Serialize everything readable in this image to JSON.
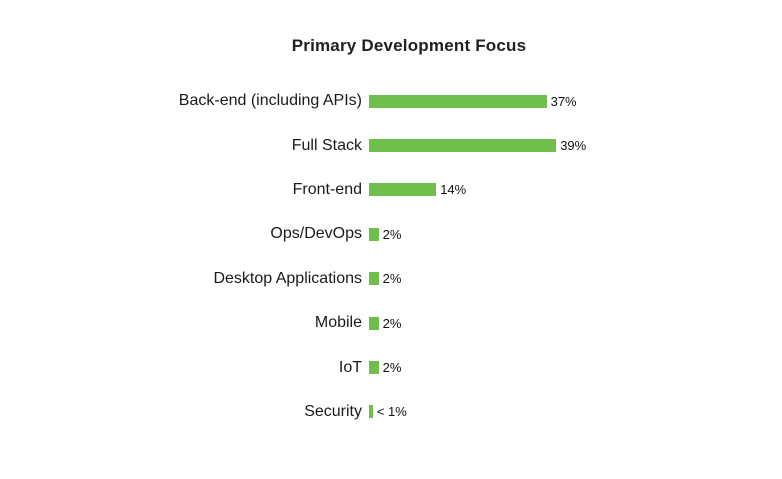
{
  "chart_data": {
    "type": "bar",
    "orientation": "horizontal",
    "title": "Primary Development Focus",
    "categories": [
      "Back-end (including APIs)",
      "Full Stack",
      "Front-end",
      "Ops/DevOps",
      "Desktop Applications",
      "Mobile",
      "IoT",
      "Security"
    ],
    "values": [
      37,
      39,
      14,
      2,
      2,
      2,
      2,
      0.8
    ],
    "value_labels": [
      "37%",
      "39%",
      "14%",
      "2%",
      "2%",
      "2%",
      "2%",
      "< 1%"
    ],
    "xlabel": "",
    "ylabel": "",
    "xlim": [
      0,
      42
    ],
    "grid": false,
    "legend": false,
    "bar_color": "#6FBF4C",
    "title_color": "#212121",
    "label_color": "#1a1a1a",
    "background": "#ffffff"
  }
}
